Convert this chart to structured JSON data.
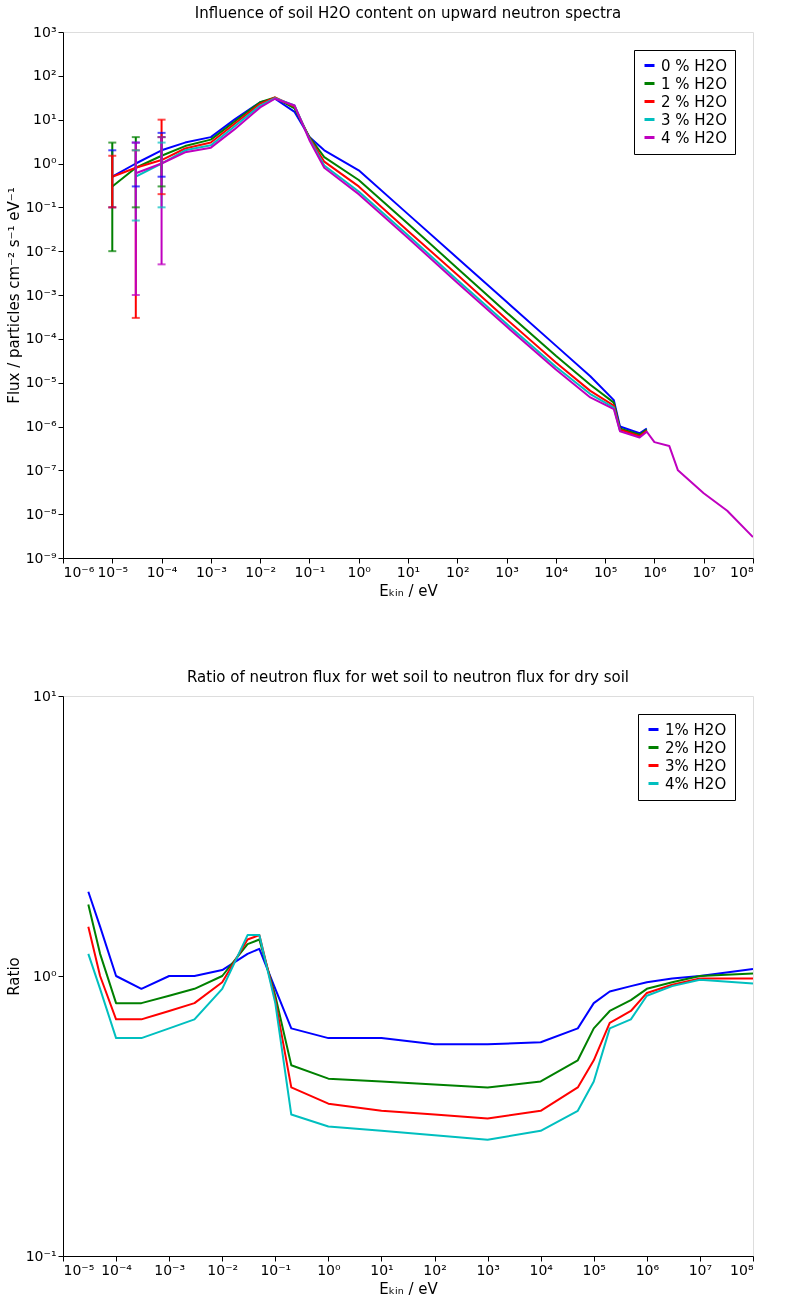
{
  "chart_data": [
    {
      "type": "line",
      "title": "Influence of soil H2O content on upward neutron spectra",
      "xlabel": "Eₖᵢₙ / eV",
      "ylabel": "Flux / particles cm⁻² s⁻¹ eV⁻¹",
      "log": "xy",
      "legend": "top right",
      "xlim": [
        1e-06,
        100000000.0
      ],
      "ylim": [
        1e-09,
        1000.0
      ],
      "xticks": [
        {
          "value": 1e-06,
          "label": "10⁻⁶"
        },
        {
          "value": 1e-05,
          "label": "10⁻⁵"
        },
        {
          "value": 0.0001,
          "label": "10⁻⁴"
        },
        {
          "value": 0.001,
          "label": "10⁻³"
        },
        {
          "value": 0.01,
          "label": "10⁻²"
        },
        {
          "value": 0.1,
          "label": "10⁻¹"
        },
        {
          "value": 1,
          "label": "10⁰"
        },
        {
          "value": 10,
          "label": "10¹"
        },
        {
          "value": 100,
          "label": "10²"
        },
        {
          "value": 1000,
          "label": "10³"
        },
        {
          "value": 10000.0,
          "label": "10⁴"
        },
        {
          "value": 100000.0,
          "label": "10⁵"
        },
        {
          "value": 1000000.0,
          "label": "10⁶"
        },
        {
          "value": 10000000.0,
          "label": "10⁷"
        },
        {
          "value": 100000000.0,
          "label": "10⁸"
        }
      ],
      "yticks": [
        {
          "value": 1e-09,
          "label": "10⁻⁹"
        },
        {
          "value": 1e-08,
          "label": "10⁻⁸"
        },
        {
          "value": 1e-07,
          "label": "10⁻⁷"
        },
        {
          "value": 1e-06,
          "label": "10⁻⁶"
        },
        {
          "value": 1e-05,
          "label": "10⁻⁵"
        },
        {
          "value": 0.0001,
          "label": "10⁻⁴"
        },
        {
          "value": 0.001,
          "label": "10⁻³"
        },
        {
          "value": 0.01,
          "label": "10⁻²"
        },
        {
          "value": 0.1,
          "label": "10⁻¹"
        },
        {
          "value": 1,
          "label": "10⁰"
        },
        {
          "value": 10,
          "label": "10¹"
        },
        {
          "value": 100,
          "label": "10²"
        },
        {
          "value": 1000,
          "label": "10³"
        }
      ],
      "x": [
        1e-05,
        3e-05,
        0.0001,
        0.0003,
        0.001,
        0.003,
        0.01,
        0.02,
        0.05,
        0.1,
        0.2,
        1,
        10,
        100,
        1000,
        10000.0,
        50000.0,
        150000.0,
        200000.0,
        500000.0,
        700000.0,
        1000000.0,
        2000000.0,
        3000000.0,
        10000000.0,
        30000000.0,
        100000000.0
      ],
      "series": [
        {
          "name": "0 % H2O",
          "color": "#0000ff",
          "values": [
            0.5,
            1,
            2,
            3,
            4,
            10,
            25,
            30,
            15,
            4,
            2,
            0.7,
            0.07,
            0.007,
            0.0007,
            7e-05,
            1.4e-05,
            4e-06,
            1e-06,
            7e-07,
            9e-07,
            null,
            null,
            null,
            null,
            null,
            null
          ],
          "errors": [
            [
              0.1,
              2
            ],
            [
              0.3,
              3
            ],
            [
              0.5,
              5
            ],
            null,
            null,
            null,
            null,
            null,
            null,
            null,
            null,
            null,
            null,
            null,
            null,
            null,
            null,
            null,
            null,
            null,
            null,
            null,
            null,
            null,
            null,
            null,
            null
          ]
        },
        {
          "name": "1 % H2O",
          "color": "#008000",
          "values": [
            0.3,
            0.8,
            1.5,
            2.5,
            3.5,
            9,
            25,
            32,
            18,
            4,
            1.4,
            0.42,
            0.042,
            0.0041,
            0.0004,
            4.1e-05,
            9e-06,
            3.5e-06,
            9e-07,
            6.5e-07,
            8.5e-07,
            null,
            null,
            null,
            null,
            null,
            null
          ],
          "errors": [
            [
              0.01,
              3
            ],
            [
              0.1,
              4
            ],
            [
              0.3,
              4
            ],
            null,
            null,
            null,
            null,
            null,
            null,
            null,
            null,
            null,
            null,
            null,
            null,
            null,
            null,
            null,
            null,
            null,
            null,
            null,
            null,
            null,
            null,
            null,
            null
          ]
        },
        {
          "name": "2 % H2O",
          "color": "#ff0000",
          "values": [
            0.5,
            0.8,
            1.2,
            2.2,
            3,
            8,
            23,
            32,
            20,
            3.8,
            1.1,
            0.3,
            0.029,
            0.0029,
            0.00028,
            2.9e-05,
            6.5e-06,
            3e-06,
            8.5e-07,
            6e-07,
            8e-07,
            null,
            null,
            null,
            null,
            null,
            null
          ],
          "errors": [
            [
              0.1,
              1.5
            ],
            [
              0.0003,
              2
            ],
            [
              0.2,
              10
            ],
            null,
            null,
            null,
            null,
            null,
            null,
            null,
            null,
            null,
            null,
            null,
            null,
            null,
            null,
            null,
            null,
            null,
            null,
            null,
            null,
            null,
            null,
            null,
            null
          ]
        },
        {
          "name": "3 % H2O",
          "color": "#00bfbf",
          "values": [
            null,
            0.5,
            1,
            2,
            2.6,
            7,
            21,
            31,
            21,
            3.6,
            0.9,
            0.23,
            0.023,
            0.0022,
            0.00022,
            2.3e-05,
            5.5e-06,
            2.7e-06,
            8e-07,
            null,
            null,
            null,
            null,
            null,
            null,
            null,
            null
          ],
          "errors": [
            null,
            [
              0.05,
              2
            ],
            [
              0.1,
              3
            ],
            null,
            null,
            null,
            null,
            null,
            null,
            null,
            null,
            null,
            null,
            null,
            null,
            null,
            null,
            null,
            null,
            null,
            null,
            null,
            null,
            null,
            null,
            null,
            null
          ]
        },
        {
          "name": "4 % H2O",
          "color": "#bf00bf",
          "values": [
            null,
            0.6,
            1,
            1.8,
            2.3,
            6,
            19,
            30,
            21,
            3.4,
            0.8,
            0.2,
            0.02,
            0.0019,
            0.00019,
            2e-05,
            4.6e-06,
            2.5e-06,
            7.8e-07,
            5.6e-07,
            7.6e-07,
            4.4e-07,
            3.6e-07,
            1e-07,
            3e-08,
            1.2e-08,
            3e-09
          ],
          "errors": [
            null,
            [
              0.001,
              3
            ],
            [
              0.005,
              4
            ],
            null,
            null,
            null,
            null,
            null,
            null,
            null,
            null,
            null,
            null,
            null,
            null,
            null,
            null,
            null,
            null,
            null,
            null,
            null,
            null,
            null,
            null,
            null,
            null
          ]
        }
      ]
    },
    {
      "type": "line",
      "title": "Ratio of neutron flux for wet soil to neutron flux for dry soil",
      "xlabel": "Eₖᵢₙ / eV",
      "ylabel": "Ratio",
      "log": "xy",
      "legend": "top right",
      "xlim": [
        1e-05,
        100000000.0
      ],
      "ylim": [
        0.1,
        10
      ],
      "xticks": [
        {
          "value": 1e-05,
          "label": "10⁻⁵"
        },
        {
          "value": 0.0001,
          "label": "10⁻⁴"
        },
        {
          "value": 0.001,
          "label": "10⁻³"
        },
        {
          "value": 0.01,
          "label": "10⁻²"
        },
        {
          "value": 0.1,
          "label": "10⁻¹"
        },
        {
          "value": 1,
          "label": "10⁰"
        },
        {
          "value": 10,
          "label": "10¹"
        },
        {
          "value": 100,
          "label": "10²"
        },
        {
          "value": 1000,
          "label": "10³"
        },
        {
          "value": 10000.0,
          "label": "10⁴"
        },
        {
          "value": 100000.0,
          "label": "10⁵"
        },
        {
          "value": 1000000.0,
          "label": "10⁶"
        },
        {
          "value": 10000000.0,
          "label": "10⁷"
        },
        {
          "value": 100000000.0,
          "label": "10⁸"
        }
      ],
      "yticks": [
        {
          "value": 0.1,
          "label": "10⁻¹"
        },
        {
          "value": 1,
          "label": "10⁰"
        },
        {
          "value": 10,
          "label": "10¹"
        }
      ],
      "x": [
        3e-05,
        5e-05,
        0.0001,
        0.0003,
        0.001,
        0.003,
        0.01,
        0.03,
        0.05,
        0.1,
        0.2,
        1,
        10,
        100,
        1000,
        10000.0,
        50000.0,
        100000.0,
        200000.0,
        500000.0,
        1000000.0,
        3000000.0,
        10000000.0,
        100000000.0
      ],
      "series": [
        {
          "name": "1% H2O",
          "color": "#0000ff",
          "values": [
            2,
            1.5,
            1,
            0.9,
            1.0,
            1.0,
            1.05,
            1.2,
            1.25,
            0.9,
            0.65,
            0.6,
            0.6,
            0.57,
            0.57,
            0.58,
            0.65,
            0.8,
            0.88,
            0.92,
            0.95,
            0.98,
            1.0,
            1.06
          ]
        },
        {
          "name": "2% H2O",
          "color": "#008000",
          "values": [
            1.8,
            1.2,
            0.8,
            0.8,
            0.85,
            0.9,
            1.0,
            1.3,
            1.35,
            0.85,
            0.48,
            0.43,
            0.42,
            0.41,
            0.4,
            0.42,
            0.5,
            0.65,
            0.75,
            0.82,
            0.9,
            0.95,
            1.0,
            1.02
          ]
        },
        {
          "name": "3% H2O",
          "color": "#ff0000",
          "values": [
            1.5,
            1.0,
            0.7,
            0.7,
            0.75,
            0.8,
            0.95,
            1.35,
            1.4,
            0.82,
            0.4,
            0.35,
            0.33,
            0.32,
            0.31,
            0.33,
            0.4,
            0.5,
            0.68,
            0.75,
            0.87,
            0.93,
            0.98,
            0.98
          ]
        },
        {
          "name": "4% H2O",
          "color": "#00bfbf",
          "values": [
            1.2,
            0.9,
            0.6,
            0.6,
            0.65,
            0.7,
            0.9,
            1.4,
            1.4,
            0.8,
            0.32,
            0.29,
            0.28,
            0.27,
            0.26,
            0.28,
            0.33,
            0.42,
            0.65,
            0.7,
            0.85,
            0.92,
            0.97,
            0.94
          ]
        }
      ]
    }
  ]
}
